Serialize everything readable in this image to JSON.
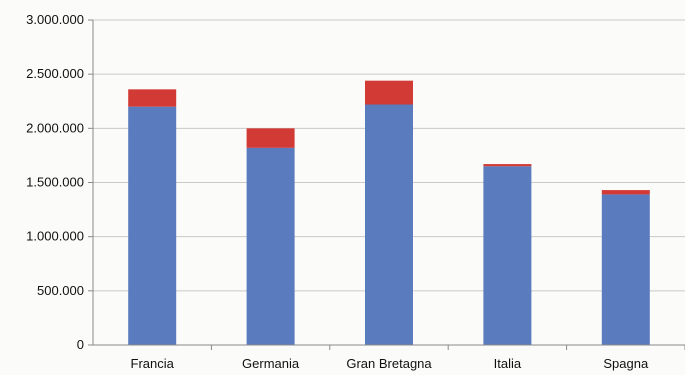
{
  "chart_data": {
    "type": "bar",
    "stacked": true,
    "categories": [
      "Francia",
      "Germania",
      "Gran Bretagna",
      "Italia",
      "Spagna"
    ],
    "series": [
      {
        "color": "#5a7bbd",
        "values": [
          2200000,
          1820000,
          2220000,
          1650000,
          1390000
        ]
      },
      {
        "color": "#d23a35",
        "values": [
          160000,
          180000,
          220000,
          20000,
          40000
        ]
      }
    ],
    "ylim": [
      0,
      3000000
    ],
    "yticks": [
      0,
      500000,
      1000000,
      1500000,
      2000000,
      2500000,
      3000000
    ],
    "ytick_labels": [
      "0",
      "500.000",
      "1.000.000",
      "1.500.000",
      "2.000.000",
      "2.500.000",
      "3.000.000"
    ],
    "grid": true,
    "title": "",
    "xlabel": "",
    "ylabel": ""
  }
}
